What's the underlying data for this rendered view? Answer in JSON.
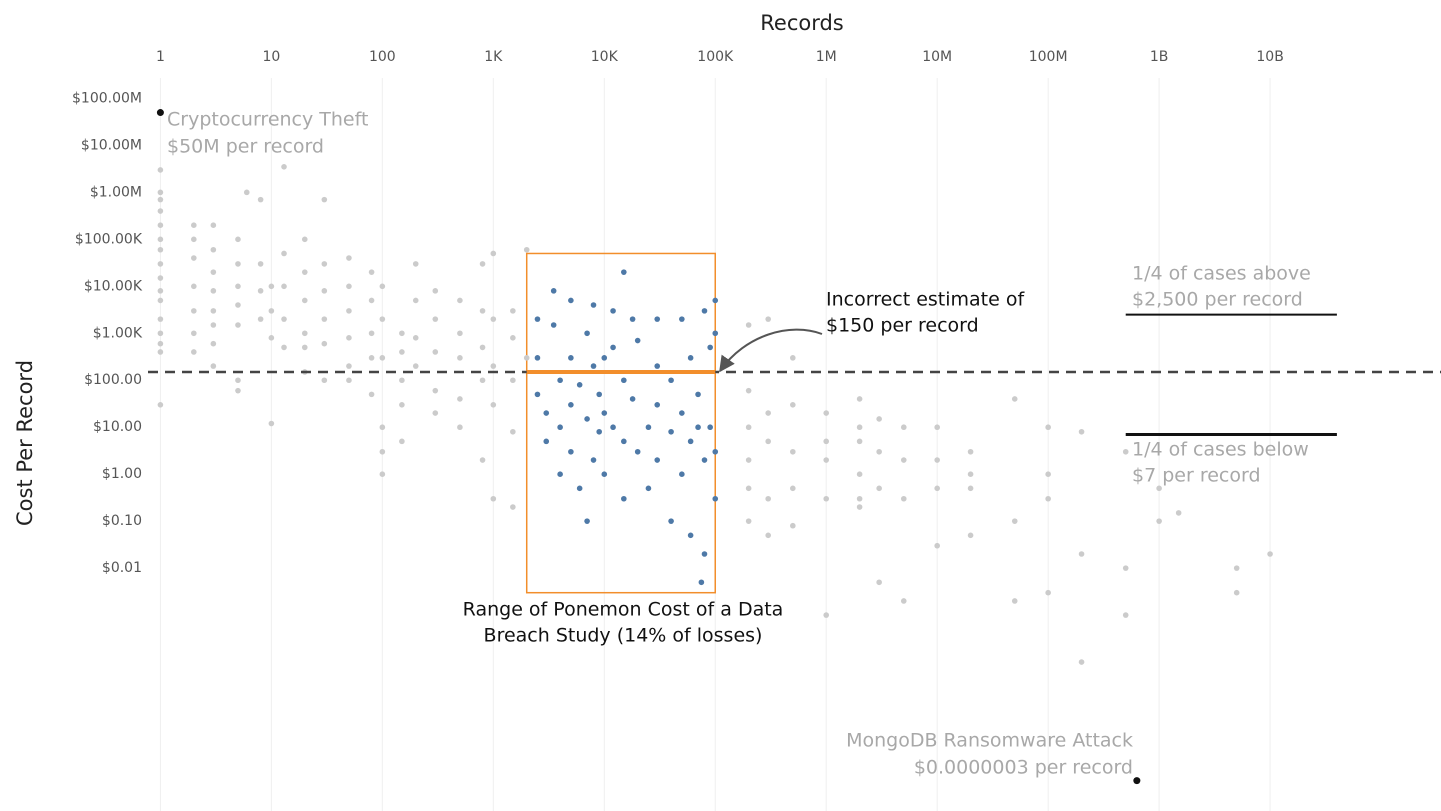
{
  "chart_data": {
    "type": "scatter",
    "xlabel": "Records",
    "ylabel": "Cost Per Record",
    "xscale": "log",
    "yscale": "log",
    "grid": true,
    "xlim": [
      0.5,
      300000000000
    ],
    "ylim": [
      1e-07,
      300000000
    ],
    "xticks": [
      1,
      10,
      100,
      {
        "value": 1000,
        "label": "1K"
      },
      {
        "value": 10000,
        "label": "10K"
      },
      {
        "value": 100000,
        "label": "100K"
      },
      {
        "value": 1000000,
        "label": "1M"
      },
      {
        "value": 10000000,
        "label": "10M"
      },
      {
        "value": 100000000,
        "label": "100M"
      },
      {
        "value": 1000000000,
        "label": "1B"
      },
      {
        "value": 10000000000,
        "label": "10B"
      }
    ],
    "yticks": [
      {
        "value": 100000000,
        "label": "$100.00M"
      },
      {
        "value": 10000000,
        "label": "$10.00M"
      },
      {
        "value": 1000000,
        "label": "$1.00M"
      },
      {
        "value": 100000,
        "label": "$100.00K"
      },
      {
        "value": 10000,
        "label": "$10.00K"
      },
      {
        "value": 1000,
        "label": "$1.00K"
      },
      {
        "value": 100,
        "label": "$100.00"
      },
      {
        "value": 10,
        "label": "$10.00"
      },
      {
        "value": 1,
        "label": "$1.00"
      },
      {
        "value": 0.1,
        "label": "$0.10"
      },
      {
        "value": 0.01,
        "label": "$0.01"
      }
    ],
    "series": [
      {
        "color": "#cbcbcb",
        "x": [
          1,
          1,
          1,
          1,
          1,
          1,
          1,
          1,
          1,
          1,
          1,
          1,
          1,
          1,
          1,
          1,
          2,
          2,
          2,
          2,
          2,
          2,
          2,
          3,
          3,
          3,
          3,
          3,
          3,
          3,
          3,
          5,
          5,
          5,
          5,
          5,
          5,
          5,
          6,
          8,
          8,
          8,
          8,
          10,
          10,
          10,
          10,
          13,
          13,
          13,
          13,
          13,
          20,
          20,
          20,
          20,
          20,
          20,
          30,
          30,
          30,
          30,
          30,
          30,
          50,
          50,
          50,
          50,
          50,
          50,
          80,
          80,
          80,
          80,
          80,
          100,
          100,
          100,
          100,
          100,
          100,
          150,
          150,
          150,
          150,
          150,
          200,
          200,
          200,
          200,
          300,
          300,
          300,
          300,
          300,
          500,
          500,
          500,
          500,
          500,
          800,
          800,
          800,
          800,
          800,
          1000,
          1000,
          1000,
          1000,
          1000,
          1500,
          1500,
          1500,
          1500,
          1500,
          2000,
          2000,
          200000,
          200000,
          200000,
          200000,
          200000,
          200000,
          300000,
          300000,
          300000,
          300000,
          300000,
          500000,
          500000,
          500000,
          500000,
          500000,
          1000000,
          1000000,
          1000000,
          1000000,
          1000000,
          2000000,
          2000000,
          2000000,
          2000000,
          2000000,
          2000000,
          3000000,
          3000000,
          3000000,
          3000000,
          5000000,
          5000000,
          5000000,
          5000000,
          10000000,
          10000000,
          10000000,
          10000000,
          20000000,
          20000000,
          20000000,
          20000000,
          50000000,
          50000000,
          50000000,
          100000000,
          100000000,
          100000000,
          100000000,
          200000000,
          200000000,
          200000000,
          500000000,
          500000000,
          500000000,
          1000000000,
          1000000000,
          1500000000,
          5000000000,
          5000000000,
          10000000000
        ],
        "values": [
          3000000,
          1000000,
          700000,
          400000,
          200000,
          100000,
          60000,
          30000,
          15000,
          8000,
          5000,
          2000,
          1000,
          600,
          400,
          30,
          200000,
          100000,
          40000,
          10000,
          3000,
          1000,
          400,
          200000,
          60000,
          20000,
          8000,
          3000,
          1500,
          600,
          200,
          100000,
          30000,
          10000,
          4000,
          1500,
          100,
          60,
          1000000,
          700000,
          30000,
          8000,
          2000,
          10000,
          3000,
          800,
          12,
          3500000,
          50000,
          10000,
          2000,
          500,
          100000,
          20000,
          5000,
          1000,
          500,
          150,
          700000,
          30000,
          8000,
          2000,
          600,
          100,
          40000,
          10000,
          3000,
          800,
          200,
          100,
          20000,
          5000,
          1000,
          300,
          50,
          10000,
          2000,
          300,
          10,
          3,
          1,
          1000,
          400,
          100,
          30,
          5,
          30000,
          5000,
          800,
          200,
          8000,
          2000,
          400,
          60,
          20,
          5000,
          1000,
          300,
          40,
          10,
          30000,
          3000,
          500,
          100,
          2,
          50000,
          2000,
          200,
          30,
          0.3,
          3000,
          800,
          100,
          8,
          0.2,
          60000,
          300,
          1500,
          60,
          10,
          2,
          0.5,
          0.1,
          2000,
          20,
          5,
          0.3,
          0.05,
          300,
          30,
          3,
          0.5,
          0.08,
          20,
          5,
          2,
          0.3,
          0.001,
          40,
          10,
          5,
          1,
          0.3,
          0.2,
          15,
          3,
          0.5,
          0.005,
          10,
          2,
          0.3,
          0.002,
          10,
          2,
          0.5,
          0.03,
          3,
          1,
          0.5,
          0.05,
          40,
          0.1,
          0.002,
          10,
          1,
          0.3,
          0.003,
          8,
          0.02,
          0.0001,
          3,
          0.01,
          0.001,
          0.5,
          0.1,
          0.15,
          0.01,
          0.003,
          0.02
        ]
      },
      {
        "color": "#4e79a7",
        "x": [
          2500,
          2500,
          2500,
          3000,
          3000,
          3500,
          3500,
          4000,
          4000,
          4000,
          5000,
          5000,
          5000,
          5000,
          6000,
          6000,
          7000,
          7000,
          7000,
          8000,
          8000,
          8000,
          9000,
          9000,
          10000,
          10000,
          10000,
          12000,
          12000,
          12000,
          15000,
          15000,
          15000,
          15000,
          18000,
          18000,
          20000,
          20000,
          25000,
          25000,
          30000,
          30000,
          30000,
          30000,
          40000,
          40000,
          40000,
          50000,
          50000,
          50000,
          60000,
          60000,
          60000,
          70000,
          70000,
          80000,
          80000,
          80000,
          90000,
          90000,
          100000,
          100000,
          100000,
          100000,
          75000
        ],
        "values": [
          2000,
          300,
          50,
          20,
          5,
          8000,
          1500,
          100,
          10,
          1,
          5000,
          300,
          30,
          3,
          0.5,
          80,
          1000,
          15,
          0.1,
          4000,
          200,
          2,
          50,
          8,
          300,
          20,
          1,
          3000,
          500,
          10,
          20000,
          100,
          5,
          0.3,
          2000,
          40,
          700,
          3,
          10,
          0.5,
          2000,
          200,
          30,
          2,
          100,
          8,
          0.1,
          2000,
          20,
          1,
          300,
          5,
          0.05,
          50,
          10,
          3000,
          0.02,
          2,
          10,
          500,
          5000,
          1000,
          3,
          0.3,
          0.005
        ]
      },
      {
        "color": "#111111",
        "x": [
          1,
          630000000
        ],
        "values": [
          50000000,
          3e-07
        ]
      }
    ],
    "reference_line": {
      "value": 150
    },
    "range_box": {
      "x": [
        2000,
        100000
      ],
      "y": [
        0.003,
        50000
      ],
      "color": "#f28e2b"
    },
    "quartile_lines": {
      "x": [
        500000000,
        40000000000
      ],
      "values": [
        2500,
        7
      ]
    },
    "annotations": [
      [
        "Cryptocurrency Theft",
        "$50M per record"
      ],
      [
        "MongoDB Ransomware Attack",
        "$0.0000003 per record"
      ],
      [
        "Incorrect estimate of",
        "$150 per record"
      ],
      [
        "Range of Ponemon Cost of a Data",
        "Breach Study (14% of losses)"
      ],
      [
        "1/4 of cases above",
        "$2,500 per record"
      ],
      [
        "1/4 of cases below",
        "$7 per record"
      ]
    ]
  }
}
